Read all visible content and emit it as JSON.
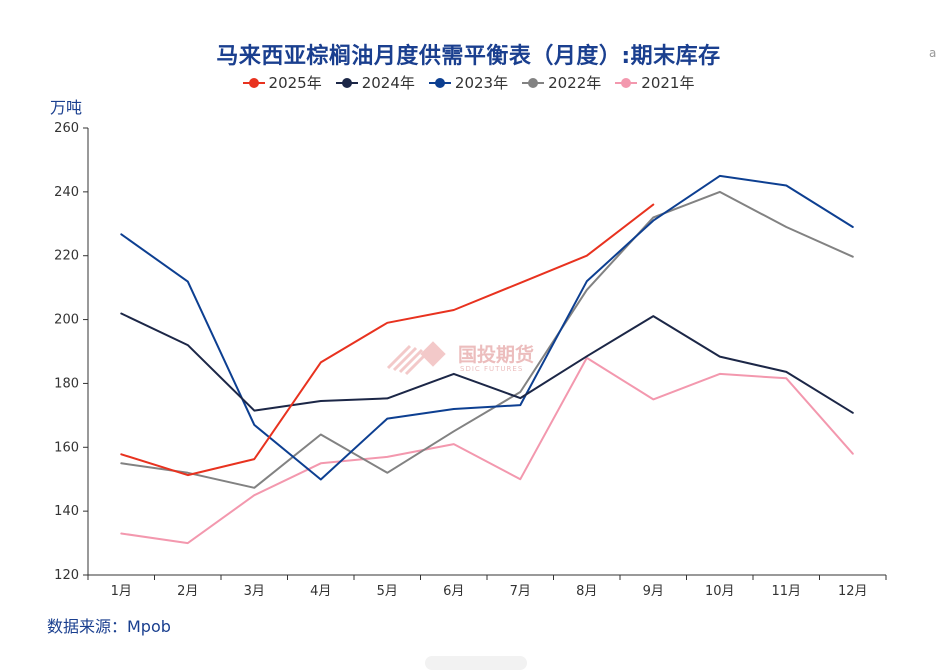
{
  "chart_data": {
    "type": "line",
    "title": "马来西亚棕榈油月度供需平衡表（月度）:期末库存",
    "ylabel": "万吨",
    "xlabel": "",
    "categories": [
      "1月",
      "2月",
      "3月",
      "4月",
      "5月",
      "6月",
      "7月",
      "8月",
      "9月",
      "10月",
      "11月",
      "12月"
    ],
    "ylim": [
      120,
      260
    ],
    "yticks": [
      120,
      140,
      160,
      180,
      200,
      220,
      240,
      260
    ],
    "grid": false,
    "legend_position": "top-center",
    "series": [
      {
        "name": "2025年",
        "color": "#e8321f",
        "values": [
          157.8,
          151.3,
          156.3,
          186.6,
          199.0,
          203.0,
          211.5,
          220.0,
          236.0,
          null,
          null,
          null
        ]
      },
      {
        "name": "2024年",
        "color": "#1c2747",
        "values": [
          201.9,
          192.0,
          171.5,
          174.5,
          175.3,
          183.0,
          175.4,
          188.5,
          201.1,
          188.4,
          183.6,
          170.8
        ]
      },
      {
        "name": "2023年",
        "color": "#0d3f91",
        "values": [
          226.7,
          211.9,
          167.0,
          149.9,
          169.0,
          172.0,
          173.2,
          212.0,
          231.0,
          245.0,
          242.0,
          229.0
        ]
      },
      {
        "name": "2022年",
        "color": "#828282",
        "values": [
          155.0,
          152.0,
          147.3,
          164.0,
          152.0,
          165.0,
          177.3,
          209.3,
          232.0,
          240.0,
          229.0,
          219.7
        ]
      },
      {
        "name": "2021年",
        "color": "#f398ae",
        "values": [
          133.0,
          130.0,
          145.0,
          155.0,
          157.0,
          161.0,
          150.0,
          188.0,
          175.0,
          183.0,
          181.6,
          158.0
        ]
      }
    ]
  },
  "source": "数据来源：Mpob",
  "watermark": {
    "name": "国投期货",
    "sub": "SDIC FUTURES"
  },
  "edge_mark": "a"
}
